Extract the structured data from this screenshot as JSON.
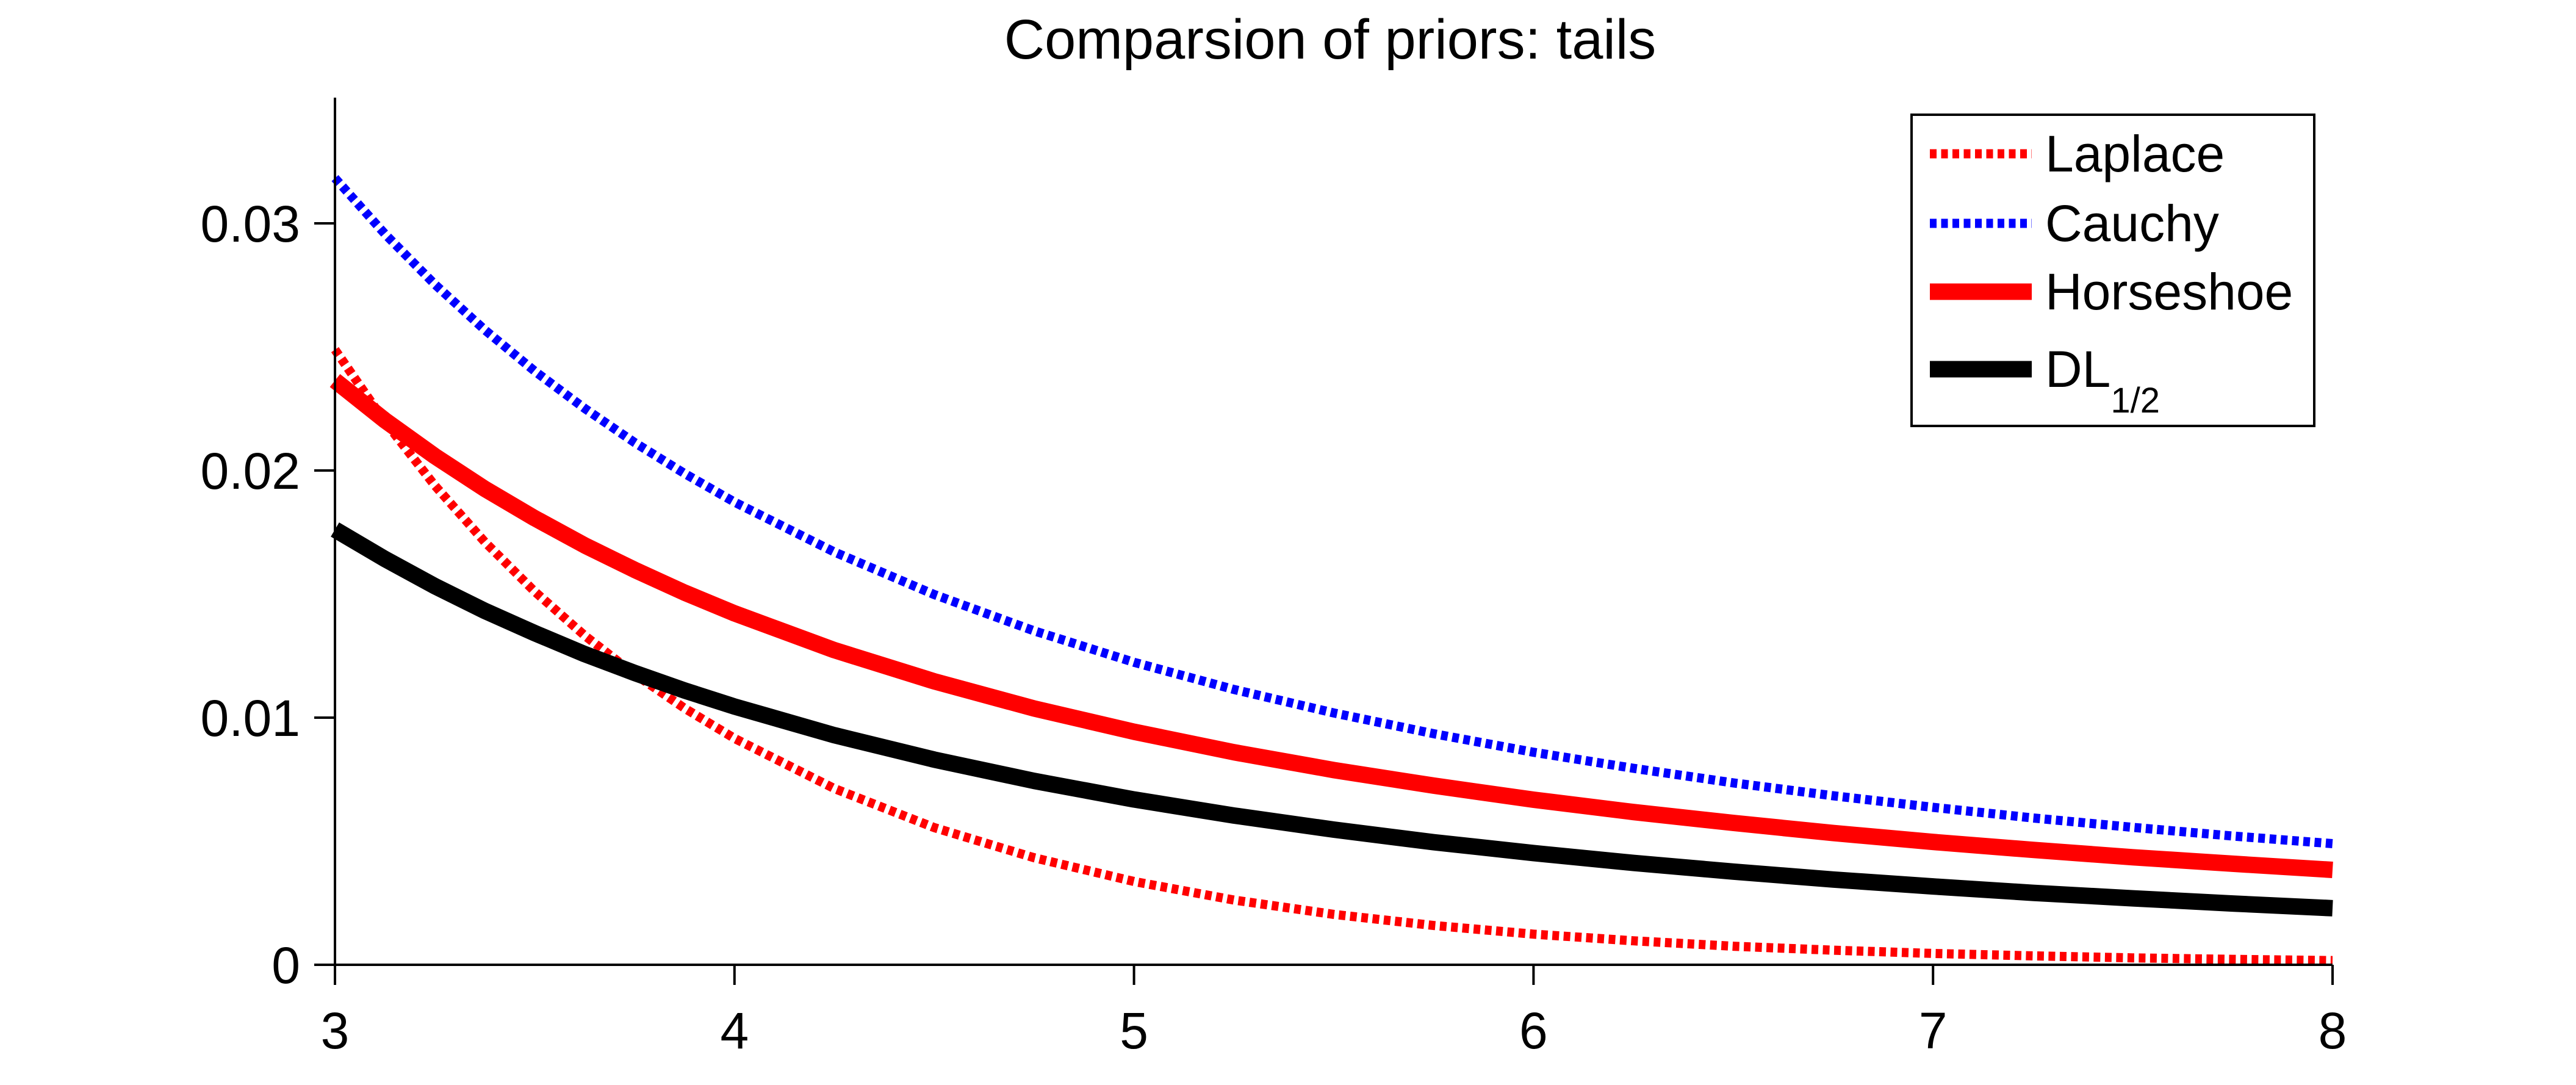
{
  "title": "Comparsion of priors: tails",
  "chart_data": {
    "type": "line",
    "title": "Comparsion of priors: tails",
    "xlabel": "",
    "ylabel": "",
    "xlim": [
      3,
      8
    ],
    "ylim": [
      0,
      0.0351
    ],
    "grid": false,
    "legend_position": "top-right",
    "axis_color": "#000000",
    "background_color": "#ffffff",
    "x_ticks": [
      3,
      4,
      5,
      6,
      7,
      8
    ],
    "y_ticks": [
      0,
      0.01,
      0.02,
      0.03
    ],
    "y_tick_labels": [
      "0",
      "0.01",
      "0.02",
      "0.03"
    ],
    "x": [
      3,
      3.125,
      3.25,
      3.375,
      3.5,
      3.625,
      3.75,
      3.875,
      4,
      4.25,
      4.5,
      4.75,
      5,
      5.25,
      5.5,
      5.75,
      6,
      6.25,
      6.5,
      6.75,
      7,
      7.25,
      7.5,
      7.75,
      8
    ],
    "series": [
      {
        "id": "laplace",
        "name": "Laplace",
        "color": "#ff0000",
        "style": "dotted",
        "values": [
          0.02489,
          0.02197,
          0.01939,
          0.01711,
          0.0151,
          0.01332,
          0.01176,
          0.01038,
          0.00916,
          0.00713,
          0.00555,
          0.00433,
          0.00337,
          0.00262,
          0.00204,
          0.00159,
          0.00124,
          0.00097,
          0.00075,
          0.00059,
          0.00046,
          0.00036,
          0.00028,
          0.00022,
          0.00017
        ]
      },
      {
        "id": "cauchy",
        "name": "Cauchy",
        "color": "#0000ff",
        "style": "dotted",
        "values": [
          0.03183,
          0.02957,
          0.02753,
          0.02569,
          0.02402,
          0.02251,
          0.02113,
          0.01988,
          0.01872,
          0.0167,
          0.01498,
          0.01351,
          0.01224,
          0.01114,
          0.01019,
          0.00935,
          0.0086,
          0.00795,
          0.00736,
          0.00684,
          0.00637,
          0.00594,
          0.00556,
          0.00521,
          0.0049
        ]
      },
      {
        "id": "horseshoe",
        "name": "Horseshoe",
        "color": "#ff0000",
        "style": "solid",
        "values": [
          0.02364,
          0.02203,
          0.02058,
          0.01926,
          0.01807,
          0.01697,
          0.01598,
          0.01506,
          0.01422,
          0.01273,
          0.01147,
          0.01037,
          0.00943,
          0.0086,
          0.00788,
          0.00725,
          0.00668,
          0.00618,
          0.00574,
          0.00533,
          0.00497,
          0.00465,
          0.00435,
          0.00409,
          0.00384
        ]
      },
      {
        "id": "dl-half",
        "name": "DL",
        "label_main": "DL",
        "label_sub": "1/2",
        "color": "#000000",
        "style": "solid",
        "values": [
          0.01761,
          0.01642,
          0.01532,
          0.01432,
          0.01342,
          0.01257,
          0.01181,
          0.0111,
          0.01045,
          0.00929,
          0.0083,
          0.00744,
          0.00669,
          0.00604,
          0.00547,
          0.00496,
          0.00452,
          0.00412,
          0.00377,
          0.00345,
          0.00317,
          0.00291,
          0.00269,
          0.00248,
          0.00229
        ]
      }
    ]
  }
}
